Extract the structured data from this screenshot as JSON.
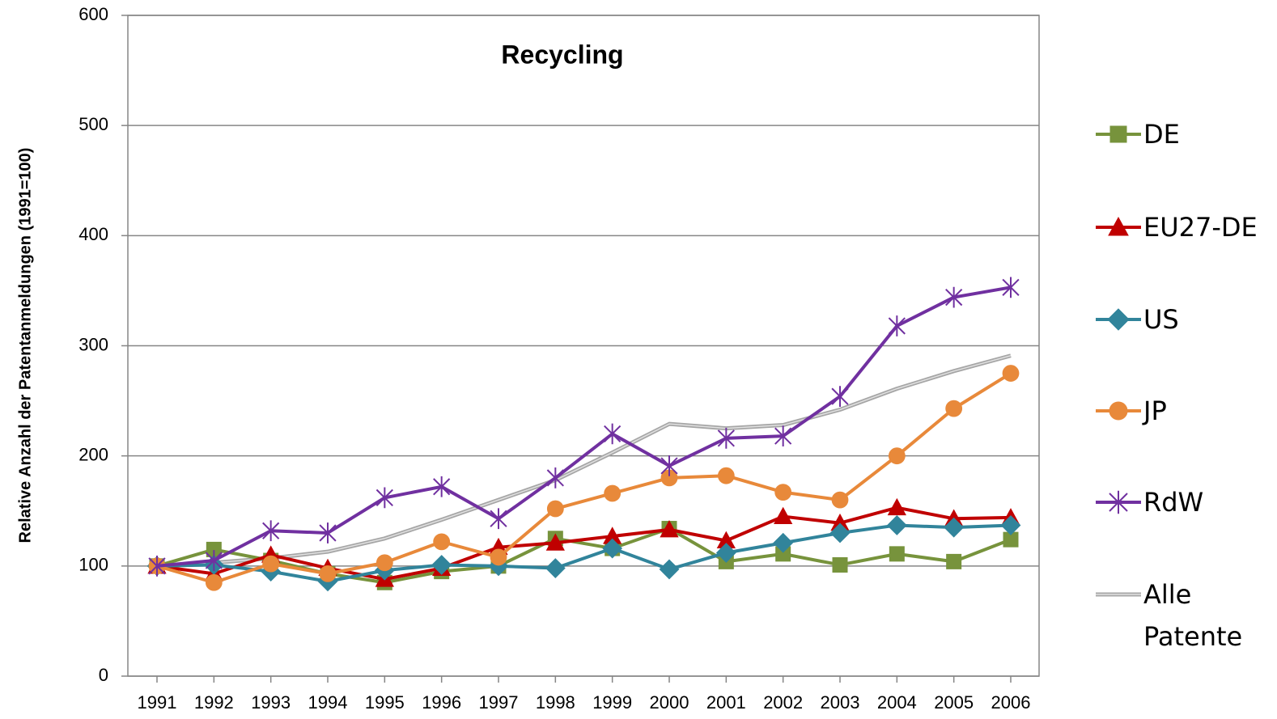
{
  "chart_data": {
    "type": "line",
    "title": "Recycling",
    "y_label": "Relative Anzahl der Patentanmeldungen (1991=100)",
    "categories": [
      "1991",
      "1992",
      "1993",
      "1994",
      "1995",
      "1996",
      "1997",
      "1998",
      "1999",
      "2000",
      "2001",
      "2002",
      "2003",
      "2004",
      "2005",
      "2006"
    ],
    "series": [
      {
        "name": "DE",
        "color": "#77933c",
        "marker": "square",
        "values": [
          100,
          115,
          105,
          93,
          85,
          95,
          100,
          125,
          116,
          134,
          104,
          111,
          101,
          111,
          104,
          124
        ]
      },
      {
        "name": "EU27-DE",
        "color": "#c00000",
        "marker": "triangle",
        "values": [
          100,
          93,
          110,
          98,
          88,
          98,
          117,
          121,
          127,
          133,
          123,
          145,
          139,
          153,
          143,
          144
        ]
      },
      {
        "name": "US",
        "color": "#31849b",
        "marker": "diamond",
        "values": [
          100,
          101,
          95,
          86,
          96,
          101,
          100,
          98,
          116,
          97,
          112,
          121,
          130,
          137,
          135,
          137
        ]
      },
      {
        "name": "JP",
        "color": "#e8893a",
        "marker": "circle",
        "values": [
          100,
          85,
          102,
          93,
          103,
          122,
          108,
          152,
          166,
          180,
          182,
          167,
          160,
          200,
          243,
          275
        ]
      },
      {
        "name": "RdW",
        "color": "#7030a0",
        "marker": "star",
        "values": [
          100,
          105,
          132,
          130,
          162,
          172,
          143,
          180,
          220,
          191,
          216,
          218,
          254,
          318,
          344,
          353
        ]
      },
      {
        "name": "Alle Patente",
        "color": "#a6a6a6",
        "marker": "none",
        "values": [
          100,
          103,
          107,
          113,
          125,
          142,
          160,
          178,
          203,
          229,
          225,
          228,
          242,
          261,
          277,
          291
        ]
      }
    ],
    "ylim": [
      0,
      600
    ],
    "yticks": [
      0,
      100,
      200,
      300,
      400,
      500,
      600
    ],
    "grid": true,
    "legend": "right"
  }
}
